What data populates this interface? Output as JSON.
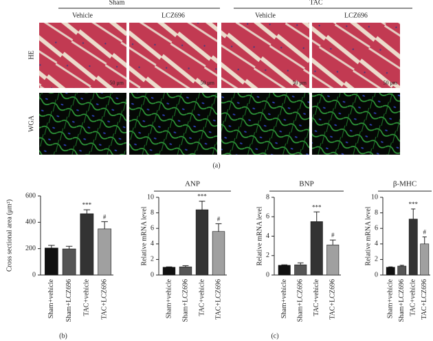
{
  "figure_a": {
    "groups": [
      {
        "label": "Sham",
        "columns": [
          "Vehicle",
          "LCZ696"
        ]
      },
      {
        "label": "TAC",
        "columns": [
          "Vehicle",
          "LCZ696"
        ]
      }
    ],
    "rows": [
      "HE",
      "WGA"
    ],
    "scale_bars": [
      "50 μm",
      "50 μm",
      "50 μm",
      "50 μm"
    ]
  },
  "panel_labels": [
    "(a)",
    "(b)",
    "(c)"
  ],
  "chart_data": [
    {
      "type": "bar",
      "ylabel": "Cross sectional area (μm²)",
      "categories": [
        "Sham+vehicle",
        "Sham+LCZ696",
        "TAC+vehicle",
        "TAC+LCZ696"
      ],
      "values": [
        205,
        198,
        465,
        350
      ],
      "errors": [
        20,
        20,
        30,
        55
      ],
      "annotations": [
        null,
        null,
        "***",
        "#"
      ],
      "colors": [
        "#111111",
        "#555555",
        "#333333",
        "#a0a0a0"
      ],
      "ylim": [
        0,
        600
      ],
      "yticks": [
        0,
        200,
        400,
        600
      ]
    },
    {
      "type": "bar",
      "title": "ANP",
      "ylabel": "Relative mRNA level",
      "categories": [
        "Sham+vehicle",
        "Sham+LCZ696",
        "TAC+vehicle",
        "TAC+LCZ696"
      ],
      "values": [
        1.0,
        1.05,
        8.4,
        5.6
      ],
      "errors": [
        0.05,
        0.15,
        1.1,
        1.0
      ],
      "annotations": [
        null,
        null,
        "***",
        "#"
      ],
      "colors": [
        "#111111",
        "#555555",
        "#333333",
        "#a0a0a0"
      ],
      "ylim": [
        0,
        10
      ],
      "yticks": [
        0,
        2,
        4,
        6,
        8,
        10
      ]
    },
    {
      "type": "bar",
      "title": "BNP",
      "ylabel": "Relative mRNA level",
      "categories": [
        "Sham+vehicle",
        "Sham+LCZ696",
        "TAC+vehicle",
        "TAC+LCZ696"
      ],
      "values": [
        1.0,
        1.05,
        5.5,
        3.1
      ],
      "errors": [
        0.05,
        0.2,
        1.0,
        0.5
      ],
      "annotations": [
        null,
        null,
        "***",
        "#"
      ],
      "colors": [
        "#111111",
        "#555555",
        "#333333",
        "#a0a0a0"
      ],
      "ylim": [
        0,
        8
      ],
      "yticks": [
        0,
        2,
        4,
        6,
        8
      ]
    },
    {
      "type": "bar",
      "title": "β-MHC",
      "ylabel": "Relative mRNA level",
      "categories": [
        "Sham+vehicle",
        "Sham+LCZ696",
        "TAC+vehicle",
        "TAC+LCZ696"
      ],
      "values": [
        1.0,
        1.15,
        7.2,
        4.0
      ],
      "errors": [
        0.05,
        0.1,
        1.3,
        0.9
      ],
      "annotations": [
        null,
        null,
        "***",
        "#"
      ],
      "colors": [
        "#111111",
        "#555555",
        "#333333",
        "#a0a0a0"
      ],
      "ylim": [
        0,
        10
      ],
      "yticks": [
        0,
        2,
        4,
        6,
        8,
        10
      ]
    }
  ]
}
